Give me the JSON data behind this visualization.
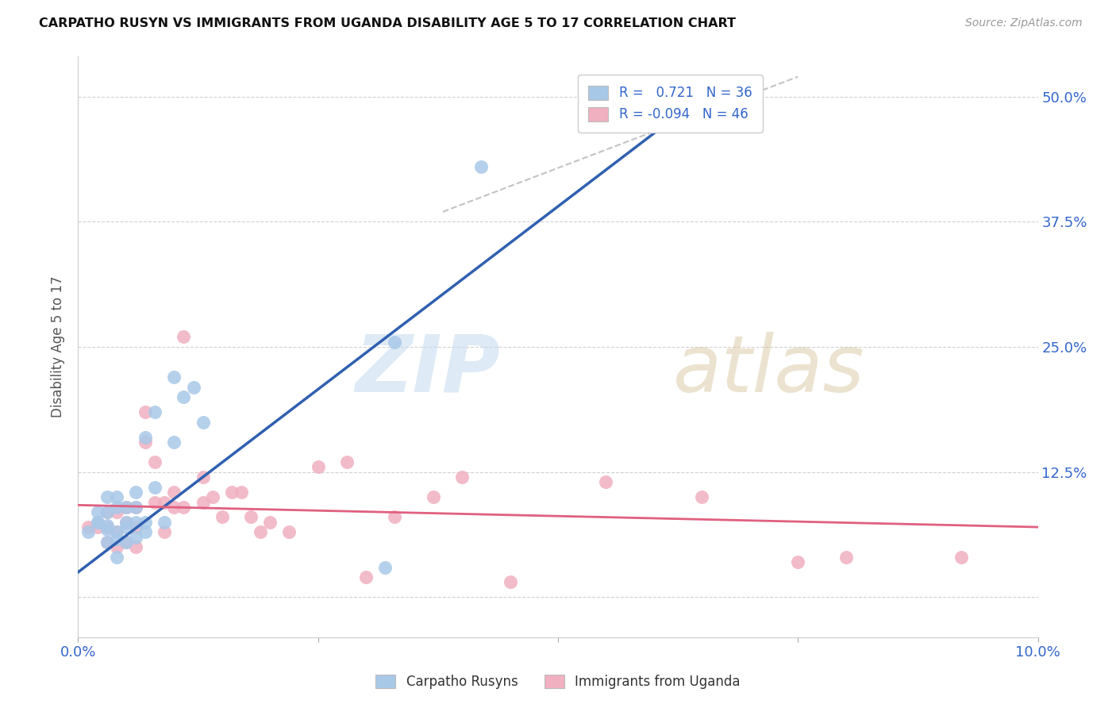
{
  "title": "CARPATHO RUSYN VS IMMIGRANTS FROM UGANDA DISABILITY AGE 5 TO 17 CORRELATION CHART",
  "source": "Source: ZipAtlas.com",
  "ylabel": "Disability Age 5 to 17",
  "xlim": [
    0.0,
    0.1
  ],
  "ylim": [
    -0.04,
    0.54
  ],
  "yticks": [
    0.0,
    0.125,
    0.25,
    0.375,
    0.5
  ],
  "ytick_labels": [
    "",
    "12.5%",
    "25.0%",
    "37.5%",
    "50.0%"
  ],
  "xticks": [
    0.0,
    0.025,
    0.05,
    0.075,
    0.1
  ],
  "xtick_labels": [
    "0.0%",
    "",
    "",
    "",
    "10.0%"
  ],
  "R_blue": 0.721,
  "N_blue": 36,
  "R_pink": -0.094,
  "N_pink": 46,
  "blue_color": "#a8c8e8",
  "pink_color": "#f0b0c0",
  "blue_line_color": "#3060b0",
  "pink_line_color": "#e06080",
  "legend_label_blue": "Carpatho Rusyns",
  "legend_label_pink": "Immigrants from Uganda",
  "blue_scatter_x": [
    0.001,
    0.002,
    0.002,
    0.002,
    0.003,
    0.003,
    0.003,
    0.003,
    0.003,
    0.004,
    0.004,
    0.004,
    0.004,
    0.004,
    0.005,
    0.005,
    0.005,
    0.005,
    0.006,
    0.006,
    0.006,
    0.006,
    0.007,
    0.007,
    0.007,
    0.008,
    0.008,
    0.009,
    0.01,
    0.01,
    0.011,
    0.012,
    0.013,
    0.032,
    0.033,
    0.042
  ],
  "blue_scatter_y": [
    0.065,
    0.075,
    0.075,
    0.085,
    0.055,
    0.068,
    0.072,
    0.085,
    0.1,
    0.04,
    0.058,
    0.065,
    0.09,
    0.1,
    0.055,
    0.07,
    0.075,
    0.09,
    0.06,
    0.075,
    0.09,
    0.105,
    0.065,
    0.075,
    0.16,
    0.11,
    0.185,
    0.075,
    0.155,
    0.22,
    0.2,
    0.21,
    0.175,
    0.03,
    0.255,
    0.43
  ],
  "pink_scatter_x": [
    0.001,
    0.002,
    0.003,
    0.003,
    0.003,
    0.004,
    0.004,
    0.004,
    0.005,
    0.005,
    0.005,
    0.006,
    0.006,
    0.006,
    0.007,
    0.007,
    0.008,
    0.008,
    0.009,
    0.009,
    0.01,
    0.01,
    0.011,
    0.011,
    0.013,
    0.013,
    0.014,
    0.015,
    0.016,
    0.017,
    0.018,
    0.019,
    0.02,
    0.022,
    0.025,
    0.028,
    0.03,
    0.033,
    0.037,
    0.04,
    0.045,
    0.055,
    0.065,
    0.075,
    0.08,
    0.092
  ],
  "pink_scatter_y": [
    0.07,
    0.07,
    0.055,
    0.07,
    0.085,
    0.05,
    0.065,
    0.085,
    0.055,
    0.075,
    0.09,
    0.05,
    0.07,
    0.09,
    0.155,
    0.185,
    0.095,
    0.135,
    0.065,
    0.095,
    0.09,
    0.105,
    0.09,
    0.26,
    0.095,
    0.12,
    0.1,
    0.08,
    0.105,
    0.105,
    0.08,
    0.065,
    0.075,
    0.065,
    0.13,
    0.135,
    0.02,
    0.08,
    0.1,
    0.12,
    0.015,
    0.115,
    0.1,
    0.035,
    0.04,
    0.04
  ],
  "blue_line_x": [
    0.0,
    0.065
  ],
  "blue_line_y": [
    0.025,
    0.5
  ],
  "pink_line_x": [
    0.0,
    0.1
  ],
  "pink_line_y": [
    0.092,
    0.07
  ],
  "dash_line_x": [
    0.038,
    0.075
  ],
  "dash_line_y": [
    0.385,
    0.52
  ]
}
